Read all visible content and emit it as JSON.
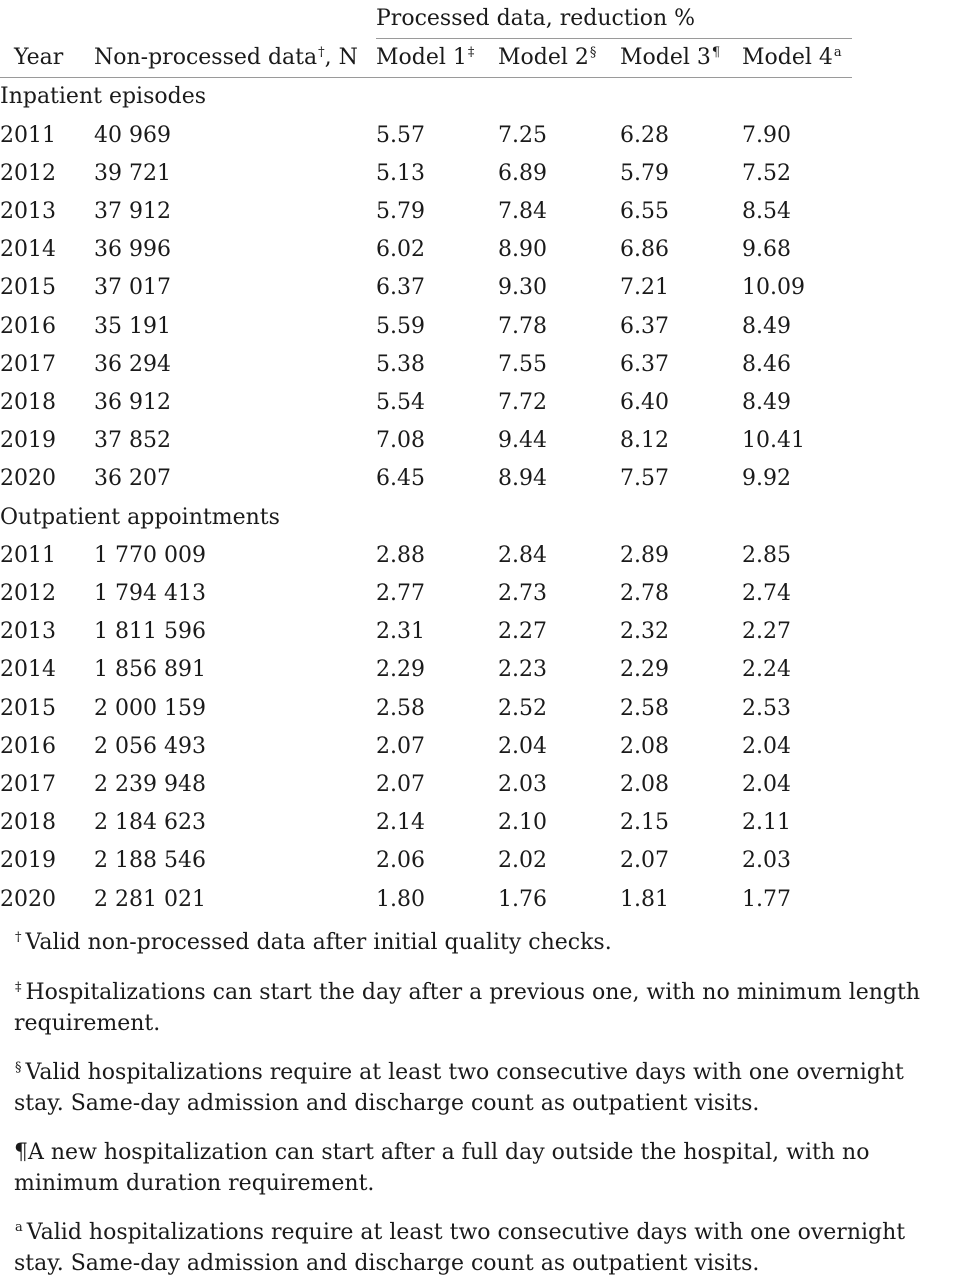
{
  "header": {
    "group_label": "Processed data, reduction %",
    "columns": {
      "year": "Year",
      "non_processed": "Non-processed data",
      "non_processed_mark": "†",
      "non_processed_unit": ", N",
      "model1": "Model 1",
      "model1_mark": "‡",
      "model2": "Model 2",
      "model2_mark": "§",
      "model3": "Model 3",
      "model3_mark": "¶",
      "model4": "Model 4",
      "model4_mark": "a"
    }
  },
  "sections": [
    {
      "title": "Inpatient episodes",
      "rows": [
        {
          "year": "2011",
          "n": "40 969",
          "m1": "5.57",
          "m2": "7.25",
          "m3": "6.28",
          "m4": "7.90"
        },
        {
          "year": "2012",
          "n": "39 721",
          "m1": "5.13",
          "m2": "6.89",
          "m3": "5.79",
          "m4": "7.52"
        },
        {
          "year": "2013",
          "n": "37 912",
          "m1": "5.79",
          "m2": "7.84",
          "m3": "6.55",
          "m4": "8.54"
        },
        {
          "year": "2014",
          "n": "36 996",
          "m1": "6.02",
          "m2": "8.90",
          "m3": "6.86",
          "m4": "9.68"
        },
        {
          "year": "2015",
          "n": "37 017",
          "m1": "6.37",
          "m2": "9.30",
          "m3": "7.21",
          "m4": "10.09"
        },
        {
          "year": "2016",
          "n": "35 191",
          "m1": "5.59",
          "m2": "7.78",
          "m3": "6.37",
          "m4": "8.49"
        },
        {
          "year": "2017",
          "n": "36 294",
          "m1": "5.38",
          "m2": "7.55",
          "m3": "6.37",
          "m4": "8.46"
        },
        {
          "year": "2018",
          "n": "36 912",
          "m1": "5.54",
          "m2": "7.72",
          "m3": "6.40",
          "m4": "8.49"
        },
        {
          "year": "2019",
          "n": "37 852",
          "m1": "7.08",
          "m2": "9.44",
          "m3": "8.12",
          "m4": "10.41"
        },
        {
          "year": "2020",
          "n": "36 207",
          "m1": "6.45",
          "m2": "8.94",
          "m3": "7.57",
          "m4": "9.92"
        }
      ]
    },
    {
      "title": "Outpatient appointments",
      "rows": [
        {
          "year": "2011",
          "n": "1 770 009",
          "m1": "2.88",
          "m2": "2.84",
          "m3": "2.89",
          "m4": "2.85"
        },
        {
          "year": "2012",
          "n": "1 794 413",
          "m1": "2.77",
          "m2": "2.73",
          "m3": "2.78",
          "m4": "2.74"
        },
        {
          "year": "2013",
          "n": "1 811 596",
          "m1": "2.31",
          "m2": "2.27",
          "m3": "2.32",
          "m4": "2.27"
        },
        {
          "year": "2014",
          "n": "1 856 891",
          "m1": "2.29",
          "m2": "2.23",
          "m3": "2.29",
          "m4": "2.24"
        },
        {
          "year": "2015",
          "n": "2 000 159",
          "m1": "2.58",
          "m2": "2.52",
          "m3": "2.58",
          "m4": "2.53"
        },
        {
          "year": "2016",
          "n": "2 056 493",
          "m1": "2.07",
          "m2": "2.04",
          "m3": "2.08",
          "m4": "2.04"
        },
        {
          "year": "2017",
          "n": "2 239 948",
          "m1": "2.07",
          "m2": "2.03",
          "m3": "2.08",
          "m4": "2.04"
        },
        {
          "year": "2018",
          "n": "2 184 623",
          "m1": "2.14",
          "m2": "2.10",
          "m3": "2.15",
          "m4": "2.11"
        },
        {
          "year": "2019",
          "n": "2 188 546",
          "m1": "2.06",
          "m2": "2.02",
          "m3": "2.07",
          "m4": "2.03"
        },
        {
          "year": "2020",
          "n": "2 281 021",
          "m1": "1.80",
          "m2": "1.76",
          "m3": "1.81",
          "m4": "1.77"
        }
      ]
    }
  ],
  "footnotes": [
    {
      "mark": "†",
      "text": "Valid non-processed data after initial quality checks."
    },
    {
      "mark": "‡",
      "text": "Hospitalizations can start the day after a previous one, with no minimum length requirement."
    },
    {
      "mark": "§",
      "text": "Valid hospitalizations require at least two consecutive days with one overnight stay. Same-day admission and discharge count as outpatient visits."
    },
    {
      "mark": "¶",
      "text": "A new hospitalization can start after a full day outside the hospital, with no minimum duration requirement."
    },
    {
      "mark": "a",
      "text": "Valid hospitalizations require at least two consecutive days with one overnight stay. Same-day admission and discharge count as outpatient visits."
    }
  ]
}
